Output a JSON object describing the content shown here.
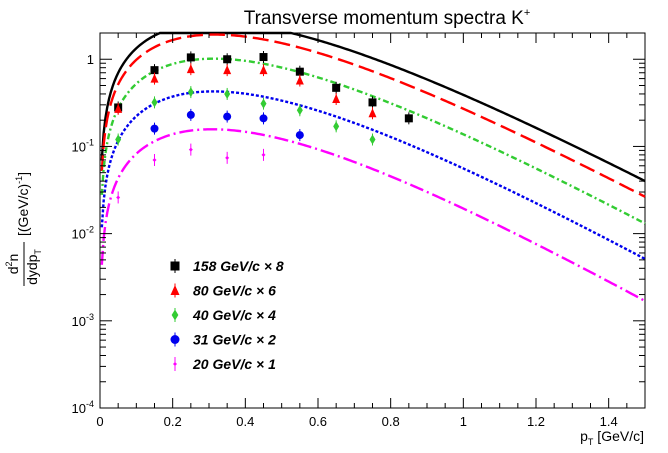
{
  "chart_data": {
    "type": "scatter",
    "title": "Transverse momentum spectra K",
    "title_superscript": "+",
    "ylabel": {
      "numerator_main": "d",
      "numerator_sup": "2",
      "numerator_tail": "n",
      "denominator_main": "dydp",
      "denominator_sub": "T",
      "unit_main": "[(GeV/c)",
      "unit_sup": "-1",
      "unit_tail": "]"
    },
    "xlabel": {
      "main": "p",
      "sub": "T",
      "tail": " [GeV/c]"
    },
    "xlim": [
      0,
      1.5
    ],
    "ylim": [
      0.0001,
      2.0
    ],
    "y_scale": "log",
    "grid": false,
    "x_ticks": [
      {
        "value": 0,
        "label": "0"
      },
      {
        "value": 0.2,
        "label": "0.2"
      },
      {
        "value": 0.4,
        "label": "0.4"
      },
      {
        "value": 0.6,
        "label": "0.6"
      },
      {
        "value": 0.8,
        "label": "0.8"
      },
      {
        "value": 1,
        "label": "1"
      },
      {
        "value": 1.2,
        "label": "1.2"
      },
      {
        "value": 1.4,
        "label": "1.4"
      }
    ],
    "y_ticks": [
      {
        "value": 1,
        "base": "1",
        "exp": ""
      },
      {
        "value": 0.1,
        "base": "10",
        "exp": "-1"
      },
      {
        "value": 0.01,
        "base": "10",
        "exp": "-2"
      },
      {
        "value": 0.001,
        "base": "10",
        "exp": "-3"
      },
      {
        "value": 0.0001,
        "base": "10",
        "exp": "-4"
      }
    ],
    "legend_position": "lower-left",
    "series": [
      {
        "name": "158 GeV/c × 8",
        "color": "#000000",
        "marker": "square",
        "dash": "",
        "x": [
          0.05,
          0.15,
          0.25,
          0.35,
          0.45,
          0.55,
          0.65,
          0.75,
          0.85
        ],
        "y": [
          0.28,
          0.75,
          1.05,
          1.0,
          1.06,
          0.72,
          0.47,
          0.32,
          0.21
        ],
        "curve": {
          "A": 42,
          "T": 0.173
        }
      },
      {
        "name": "80 GeV/c × 6",
        "color": "#ff0000",
        "marker": "triangle",
        "dash": "16,6",
        "x": [
          0.05,
          0.15,
          0.25,
          0.35,
          0.45,
          0.55,
          0.65,
          0.75
        ],
        "y": [
          0.27,
          0.6,
          0.77,
          0.75,
          0.75,
          0.57,
          0.35,
          0.24
        ],
        "curve": {
          "A": 31,
          "T": 0.17
        }
      },
      {
        "name": "40 GeV/c × 4",
        "color": "#33cc33",
        "marker": "diamond",
        "dash": "6,3,2,3",
        "x": [
          0.05,
          0.15,
          0.25,
          0.35,
          0.45,
          0.55,
          0.65,
          0.75
        ],
        "y": [
          0.12,
          0.32,
          0.42,
          0.4,
          0.31,
          0.26,
          0.17,
          0.12
        ],
        "curve": {
          "A": 16.5,
          "T": 0.168
        }
      },
      {
        "name": "31 GeV/c × 2",
        "color": "#0000ee",
        "marker": "circle",
        "dash": "3,2",
        "x": [
          0.15,
          0.25,
          0.35,
          0.45,
          0.55
        ],
        "y": [
          0.16,
          0.23,
          0.22,
          0.21,
          0.135
        ],
        "curve": {
          "A": 7,
          "T": 0.166
        }
      },
      {
        "name": "20 GeV/c × 1",
        "color": "#ff00ff",
        "marker": "star",
        "dash": "14,4,2,4",
        "x": [
          0.05,
          0.15,
          0.25,
          0.35,
          0.45
        ],
        "y": [
          0.026,
          0.07,
          0.092,
          0.074,
          0.08
        ],
        "curve": {
          "A": 2.6,
          "T": 0.163
        }
      }
    ]
  }
}
